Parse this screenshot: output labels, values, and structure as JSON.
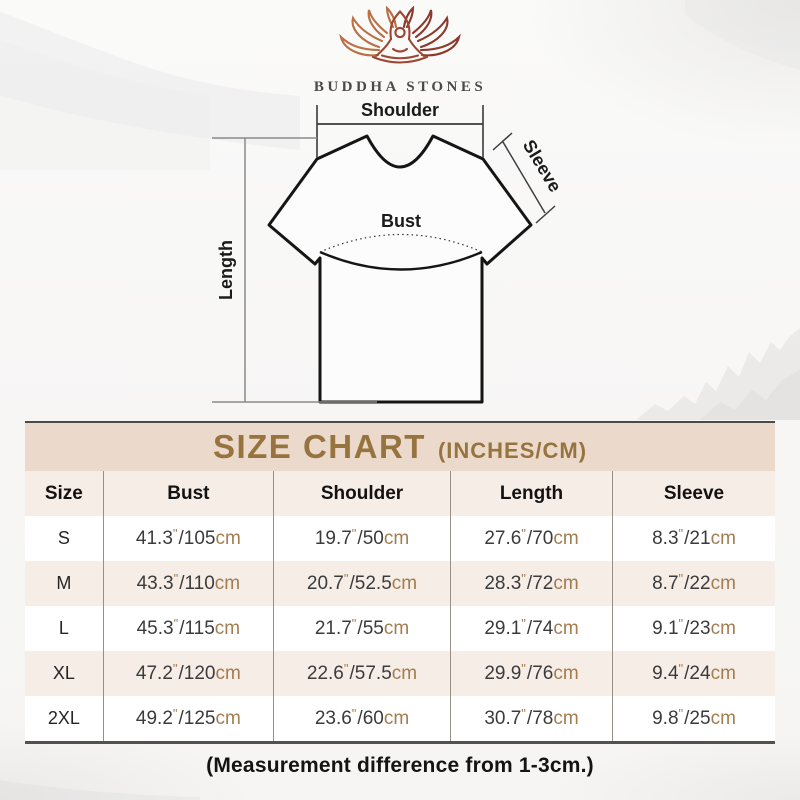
{
  "brand": {
    "name": "BUDDHA STONES"
  },
  "diagram": {
    "shoulder_label": "Shoulder",
    "sleeve_label": "Sleeve",
    "bust_label": "Bust",
    "length_label": "Length"
  },
  "size_chart": {
    "title": "SIZE CHART",
    "subtitle": "(INCHES/CM)",
    "columns": [
      "Size",
      "Bust",
      "Shoulder",
      "Length",
      "Sleeve"
    ],
    "rows": [
      {
        "size": "S",
        "bust": {
          "in": "41.3",
          "cm": "105"
        },
        "shoulder": {
          "in": "19.7",
          "cm": "50"
        },
        "length": {
          "in": "27.6",
          "cm": "70"
        },
        "sleeve": {
          "in": "8.3",
          "cm": "21"
        }
      },
      {
        "size": "M",
        "bust": {
          "in": "43.3",
          "cm": "110"
        },
        "shoulder": {
          "in": "20.7",
          "cm": "52.5"
        },
        "length": {
          "in": "28.3",
          "cm": "72"
        },
        "sleeve": {
          "in": "8.7",
          "cm": "22"
        }
      },
      {
        "size": "L",
        "bust": {
          "in": "45.3",
          "cm": "115"
        },
        "shoulder": {
          "in": "21.7",
          "cm": "55"
        },
        "length": {
          "in": "29.1",
          "cm": "74"
        },
        "sleeve": {
          "in": "9.1",
          "cm": "23"
        }
      },
      {
        "size": "XL",
        "bust": {
          "in": "47.2",
          "cm": "120"
        },
        "shoulder": {
          "in": "22.6",
          "cm": "57.5"
        },
        "length": {
          "in": "29.9",
          "cm": "76"
        },
        "sleeve": {
          "in": "9.4",
          "cm": "24"
        }
      },
      {
        "size": "2XL",
        "bust": {
          "in": "49.2",
          "cm": "125"
        },
        "shoulder": {
          "in": "23.6",
          "cm": "60"
        },
        "length": {
          "in": "30.7",
          "cm": "78"
        },
        "sleeve": {
          "in": "9.8",
          "cm": "25"
        }
      }
    ]
  },
  "footer": {
    "note": "(Measurement difference from 1-3cm.)"
  },
  "colors": {
    "accent_gold": "#97743F",
    "unit_gold": "#A37C50",
    "title_band_beige": "#EBDACB",
    "row_beige": "#F6EDE6",
    "text_dark": "#3B3B3B",
    "lotus_left": "#BB6F44",
    "lotus_right": "#8A392B"
  },
  "chart_data": {
    "type": "table",
    "title": "SIZE CHART (INCHES/CM)",
    "columns": [
      "Size",
      "Bust",
      "Shoulder",
      "Length",
      "Sleeve"
    ],
    "rows": [
      [
        "S",
        "41.3\"/105cm",
        "19.7\"/50cm",
        "27.6\"/70cm",
        "8.3\"/21cm"
      ],
      [
        "M",
        "43.3\"/110cm",
        "20.7\"/52.5cm",
        "28.3\"/72cm",
        "8.7\"/22cm"
      ],
      [
        "L",
        "45.3\"/115cm",
        "21.7\"/55cm",
        "29.1\"/74cm",
        "9.1\"/23cm"
      ],
      [
        "XL",
        "47.2\"/120cm",
        "22.6\"/57.5cm",
        "29.9\"/76cm",
        "9.4\"/24cm"
      ],
      [
        "2XL",
        "49.2\"/125cm",
        "23.6\"/60cm",
        "30.7\"/78cm",
        "9.8\"/25cm"
      ]
    ],
    "note": "(Measurement difference from 1-3cm.)"
  }
}
